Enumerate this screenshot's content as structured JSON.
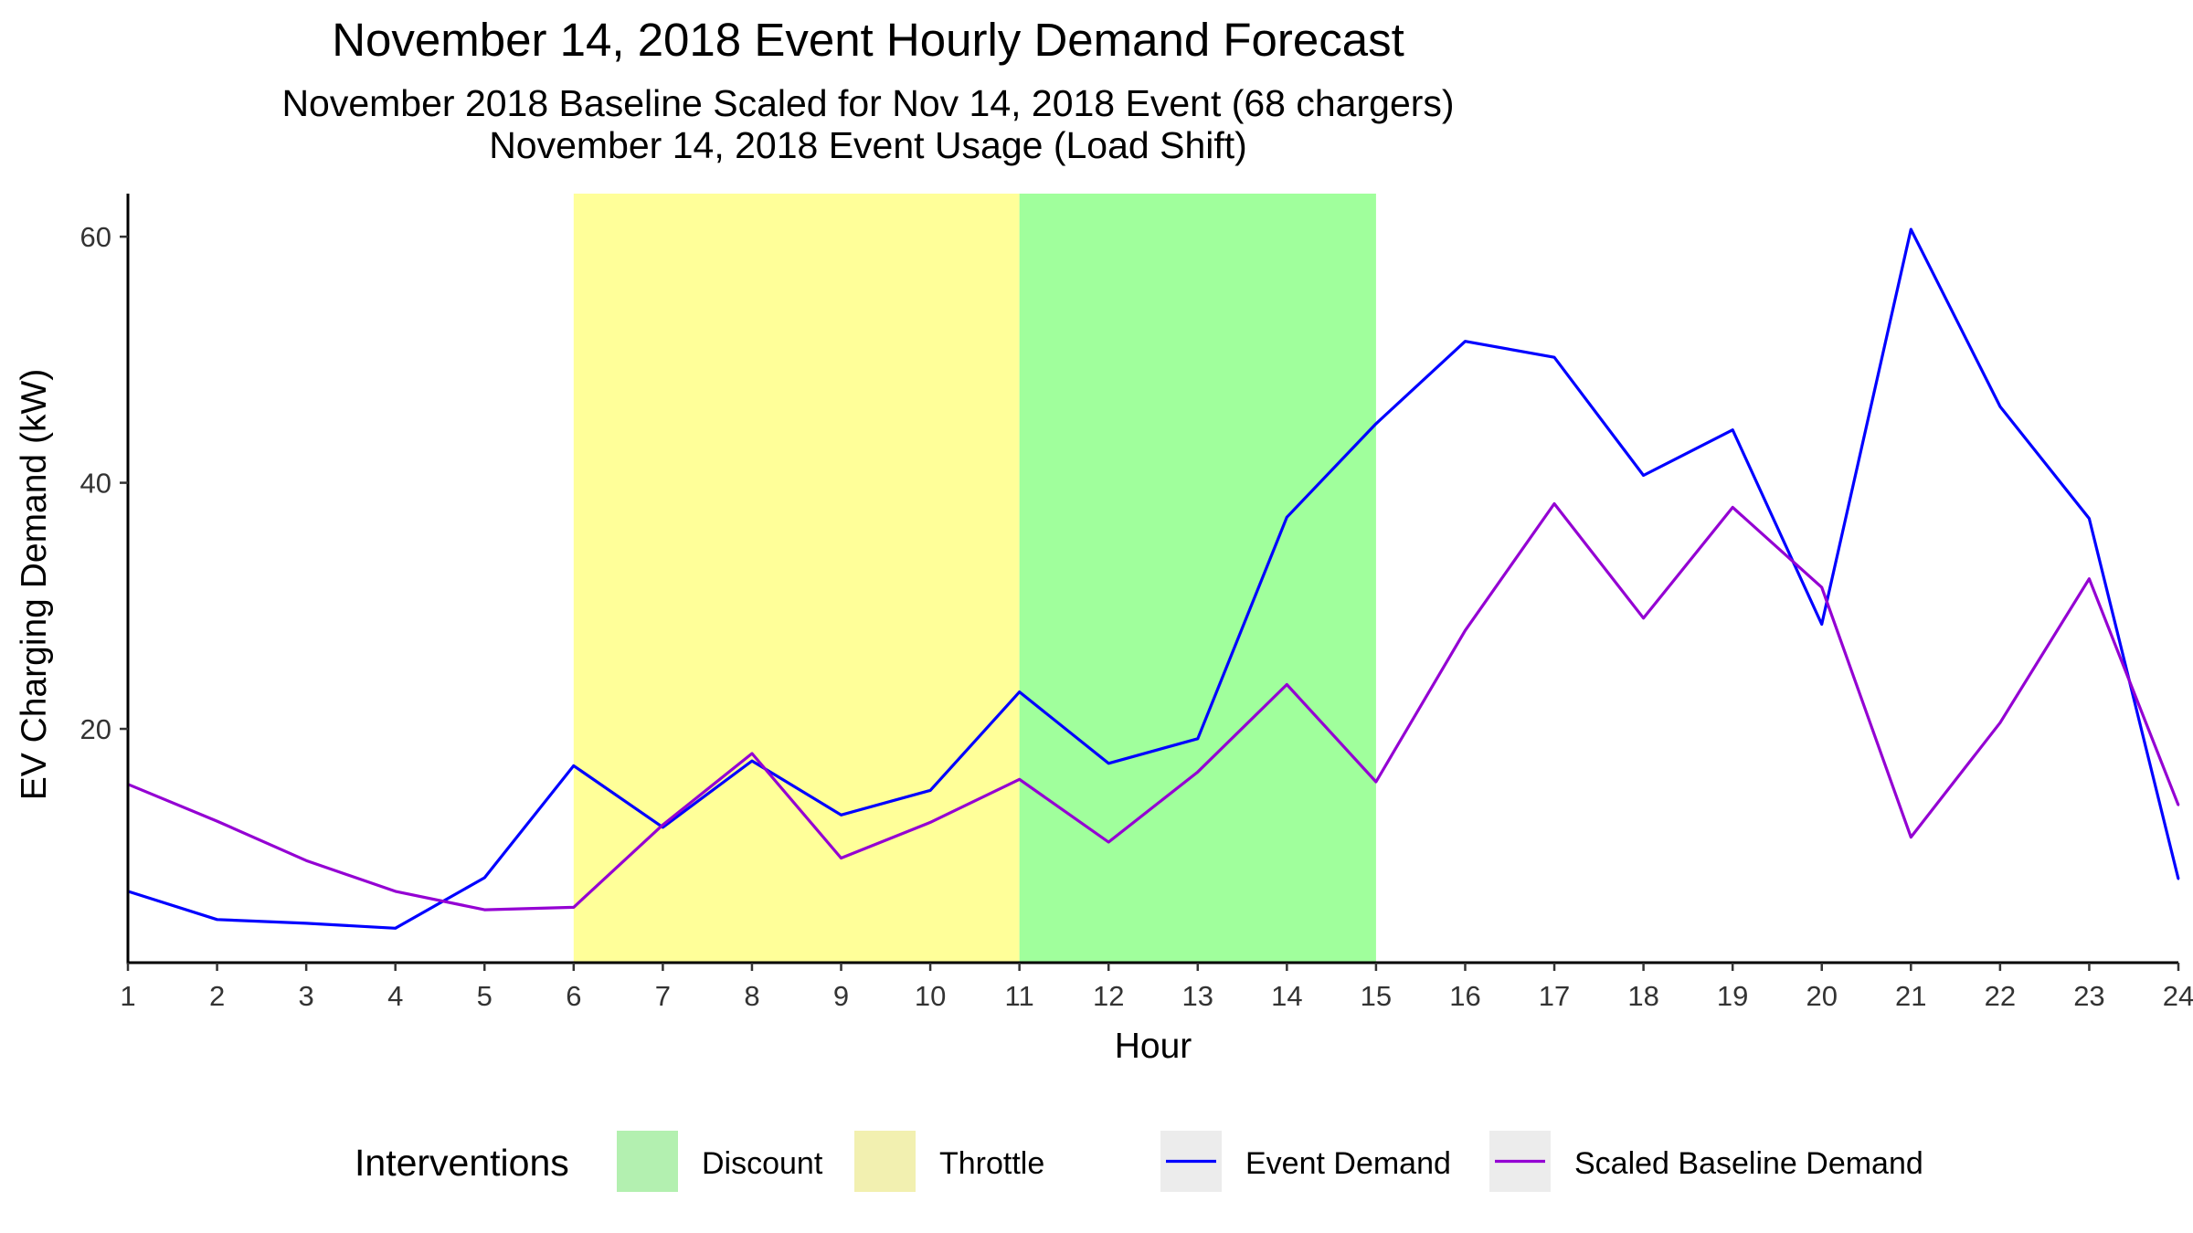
{
  "chart_data": {
    "type": "line",
    "title": "November 14, 2018 Event Hourly Demand Forecast",
    "subtitle_lines": [
      "November 2018 Baseline Scaled for Nov 14, 2018 Event (68 chargers)",
      "November 14, 2018 Event Usage (Load Shift)"
    ],
    "xlabel": "Hour",
    "ylabel": "EV Charging Demand (kW)",
    "xlim": [
      1,
      24
    ],
    "ylim": [
      1,
      63.5
    ],
    "x_ticks": [
      1,
      2,
      3,
      4,
      5,
      6,
      7,
      8,
      9,
      10,
      11,
      12,
      13,
      14,
      15,
      16,
      17,
      18,
      19,
      20,
      21,
      22,
      23,
      24
    ],
    "y_ticks": [
      20,
      40,
      60
    ],
    "x": [
      1,
      2,
      3,
      4,
      5,
      6,
      7,
      8,
      9,
      10,
      11,
      12,
      13,
      14,
      15,
      16,
      17,
      18,
      19,
      20,
      21,
      22,
      23,
      24
    ],
    "series": [
      {
        "name": "Event Demand",
        "color": "#0000ff",
        "values": [
          6.8,
          4.5,
          4.2,
          3.8,
          7.9,
          17.0,
          12.0,
          17.4,
          13.0,
          15.0,
          23.0,
          17.2,
          19.2,
          37.2,
          44.8,
          51.5,
          50.2,
          40.6,
          44.3,
          28.5,
          60.6,
          46.2,
          37.1,
          7.8
        ]
      },
      {
        "name": "Scaled Baseline Demand",
        "color": "#9400d3",
        "values": [
          15.5,
          12.5,
          9.3,
          6.8,
          5.3,
          5.5,
          12.2,
          18.0,
          9.5,
          12.4,
          15.9,
          10.8,
          16.5,
          23.6,
          15.7,
          28.0,
          38.3,
          29.0,
          38.0,
          31.5,
          11.2,
          20.5,
          32.2,
          13.8
        ]
      }
    ],
    "bands": [
      {
        "name": "Throttle",
        "from": 6,
        "to": 11,
        "color": "#ffff99"
      },
      {
        "name": "Discount",
        "from": 11,
        "to": 15,
        "color": "#a0ff9c"
      }
    ],
    "grid": false,
    "legend_position": "bottom",
    "legend": {
      "title": "Interventions",
      "fill_items": [
        {
          "label": "Discount",
          "color": "#b3f0b0"
        },
        {
          "label": "Throttle",
          "color": "#f2f0b0"
        }
      ],
      "line_items": [
        {
          "label": "Event Demand",
          "color": "#0000ff"
        },
        {
          "label": "Scaled Baseline Demand",
          "color": "#9400d3"
        }
      ]
    }
  }
}
